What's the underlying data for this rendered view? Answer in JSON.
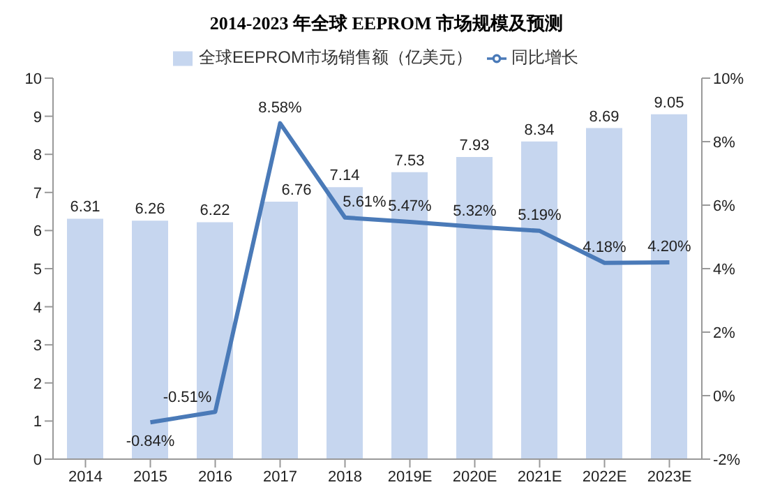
{
  "chart_data": {
    "type": "bar",
    "title": "2014-2023 年全球 EEPROM 市场规模及预测",
    "categories": [
      "2014",
      "2015",
      "2016",
      "2017",
      "2018",
      "2019E",
      "2020E",
      "2021E",
      "2022E",
      "2023E"
    ],
    "series": [
      {
        "name": "全球EEPROM市场销售额（亿美元）",
        "color": "#c6d6ef",
        "values": [
          6.31,
          6.26,
          6.22,
          6.76,
          7.14,
          7.53,
          7.93,
          8.34,
          8.69,
          9.05
        ],
        "value_labels": [
          "6.31",
          "6.26",
          "6.22",
          "6.76",
          "7.14",
          "7.53",
          "7.93",
          "8.34",
          "8.69",
          "9.05"
        ]
      },
      {
        "name": "同比增长",
        "type": "line",
        "axis": "y2",
        "color": "#4a7ab8",
        "values": [
          null,
          -0.84,
          -0.51,
          8.58,
          5.61,
          5.47,
          5.32,
          5.19,
          4.18,
          4.2
        ],
        "value_labels": [
          null,
          "-0.84%",
          "-0.51%",
          "8.58%",
          "5.61%",
          "5.47%",
          "5.32%",
          "5.19%",
          "4.18%",
          "4.20%"
        ]
      }
    ],
    "ylim": [
      0,
      10
    ],
    "yticks": [
      0,
      1,
      2,
      3,
      4,
      5,
      6,
      7,
      8,
      9,
      10
    ],
    "y2lim": [
      -2,
      10
    ],
    "y2ticks": [
      {
        "value": -2,
        "label": "-2%"
      },
      {
        "value": 0,
        "label": "0%"
      },
      {
        "value": 2,
        "label": "2%"
      },
      {
        "value": 4,
        "label": "4%"
      },
      {
        "value": 6,
        "label": "6%"
      },
      {
        "value": 8,
        "label": "8%"
      },
      {
        "value": 10,
        "label": "10%"
      }
    ],
    "legend": "top",
    "marker": "none",
    "line_style": "solid",
    "grid": false
  }
}
